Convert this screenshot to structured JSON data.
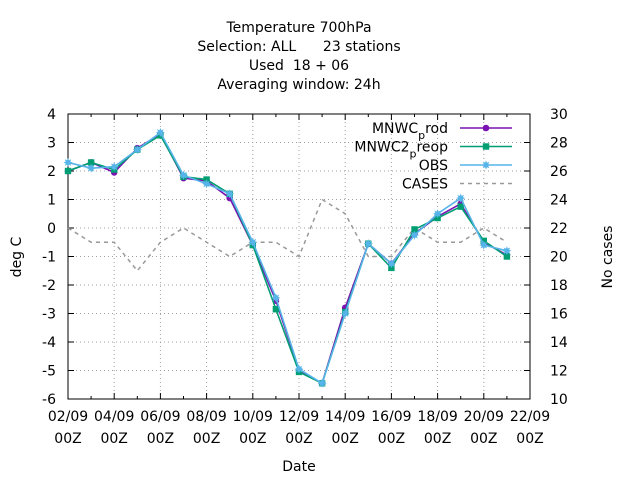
{
  "chart_data": {
    "type": "line",
    "title_lines": [
      "Temperature 700hPa",
      "Selection: ALL      23 stations",
      "Used  18 + 06",
      "Averaging window: 24h"
    ],
    "xlabel": "Date",
    "ylabel": "deg C",
    "y2label": "No cases",
    "ylim": [
      -6,
      4
    ],
    "yticks": [
      "-6",
      "-5",
      "-4",
      "-3",
      "-2",
      "-1",
      "0",
      "1",
      "2",
      "3",
      "4"
    ],
    "y2lim": [
      10,
      30
    ],
    "y2ticks": [
      "10",
      "12",
      "14",
      "16",
      "18",
      "20",
      "22",
      "24",
      "26",
      "28",
      "30"
    ],
    "xlim": [
      0,
      20
    ],
    "xticks": [
      {
        "date": "02/09",
        "hour": "00Z"
      },
      {
        "date": "04/09",
        "hour": "00Z"
      },
      {
        "date": "06/09",
        "hour": "00Z"
      },
      {
        "date": "08/09",
        "hour": "00Z"
      },
      {
        "date": "10/09",
        "hour": "00Z"
      },
      {
        "date": "12/09",
        "hour": "00Z"
      },
      {
        "date": "14/09",
        "hour": "00Z"
      },
      {
        "date": "16/09",
        "hour": "00Z"
      },
      {
        "date": "18/09",
        "hour": "00Z"
      },
      {
        "date": "20/09",
        "hour": "00Z"
      },
      {
        "date": "22/09",
        "hour": "00Z"
      }
    ],
    "x": [
      0,
      1,
      2,
      3,
      4,
      5,
      6,
      7,
      8,
      9,
      10,
      11,
      12,
      13,
      14,
      15,
      16,
      17,
      18,
      19
    ],
    "series": [
      {
        "name_parts": [
          "MNWC",
          "p",
          "rod"
        ],
        "color": "#7b12b2",
        "marker": "circle",
        "values": [
          2.0,
          2.3,
          1.95,
          2.8,
          3.3,
          1.75,
          1.65,
          1.05,
          -0.6,
          -2.55,
          -5.0,
          -5.45,
          -2.8,
          -0.55,
          -1.25,
          -0.2,
          0.4,
          0.85,
          -0.5,
          -0.95
        ]
      },
      {
        "name_parts": [
          "MNWC2",
          "p",
          "reop"
        ],
        "color": "#009e73",
        "marker": "square",
        "values": [
          2.0,
          2.3,
          2.05,
          2.75,
          3.25,
          1.8,
          1.7,
          1.2,
          -0.6,
          -2.85,
          -5.05,
          -5.45,
          -2.95,
          -0.55,
          -1.4,
          -0.05,
          0.35,
          0.75,
          -0.45,
          -1.0
        ]
      },
      {
        "name_parts": [
          "OBS"
        ],
        "color": "#56b4e9",
        "marker": "star",
        "values": [
          2.3,
          2.1,
          2.15,
          2.75,
          3.35,
          1.85,
          1.55,
          1.2,
          -0.5,
          -2.45,
          -4.95,
          -5.45,
          -3.0,
          -0.55,
          -1.25,
          -0.25,
          0.5,
          1.05,
          -0.6,
          -0.8
        ]
      }
    ],
    "cases": {
      "name": "CASES",
      "color": "#999999",
      "axis": "y2",
      "values": [
        22,
        21,
        21,
        19,
        21,
        22,
        21,
        20,
        21,
        21,
        20,
        24,
        23,
        20,
        20,
        22,
        21,
        21,
        22,
        21
      ]
    }
  }
}
